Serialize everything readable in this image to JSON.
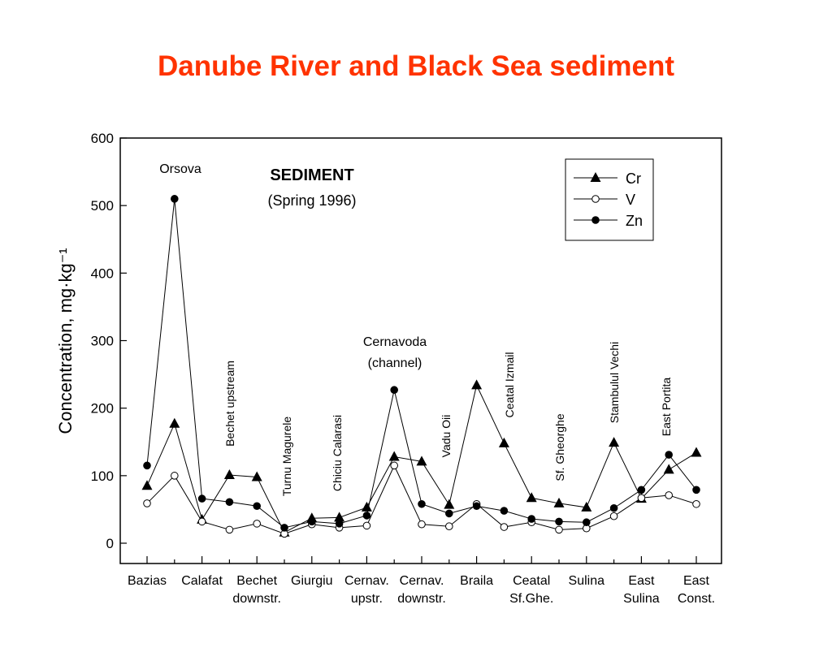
{
  "chart_data": {
    "type": "line",
    "title": "Danube River and Black Sea sediment",
    "ylabel": "Concentration,  mg·kg⁻¹",
    "categories": [
      "Bazias",
      null,
      "Calafat",
      null,
      "Bechet downstr.",
      null,
      "Giurgiu",
      null,
      "Cernav. upstr.",
      null,
      "Cernav. downstr.",
      null,
      "Braila",
      null,
      "Ceatal Sf.Ghe.",
      null,
      "Sulina",
      null,
      "East Sulina",
      null,
      "East Const."
    ],
    "series": [
      {
        "name": "Cr",
        "color": "#000000",
        "marker": "triangle",
        "values": [
          85,
          177,
          35,
          101,
          98,
          16,
          37,
          38,
          53,
          128,
          121,
          57,
          234,
          148,
          67,
          59,
          53,
          149,
          66,
          109,
          134
        ]
      },
      {
        "name": "V",
        "color": "#000000",
        "marker": "open-circle",
        "values": [
          59,
          100,
          32,
          20,
          29,
          14,
          28,
          23,
          26,
          115,
          28,
          25,
          58,
          24,
          31,
          20,
          22,
          40,
          67,
          71,
          58
        ]
      },
      {
        "name": "Zn",
        "color": "#000000",
        "marker": "circle",
        "values": [
          115,
          510,
          66,
          61,
          55,
          23,
          32,
          29,
          41,
          227,
          58,
          44,
          55,
          48,
          36,
          32,
          31,
          52,
          79,
          131,
          79
        ]
      }
    ],
    "ylim": [
      0,
      600
    ],
    "yticks": [
      0,
      100,
      200,
      300,
      400,
      500,
      600
    ],
    "legend": "upper right",
    "annotations": [
      "Orsova",
      "Bechet upstream",
      "Turnu Magurele",
      "Chiciu Calarasi",
      "Cernavoda (channel)",
      "Vadu Oii",
      "Ceatal Izmail",
      "Sf. Gheorghe",
      "Stambulul Vechi",
      "East Portita",
      "SEDIMENT",
      "(Spring 1996)"
    ]
  }
}
